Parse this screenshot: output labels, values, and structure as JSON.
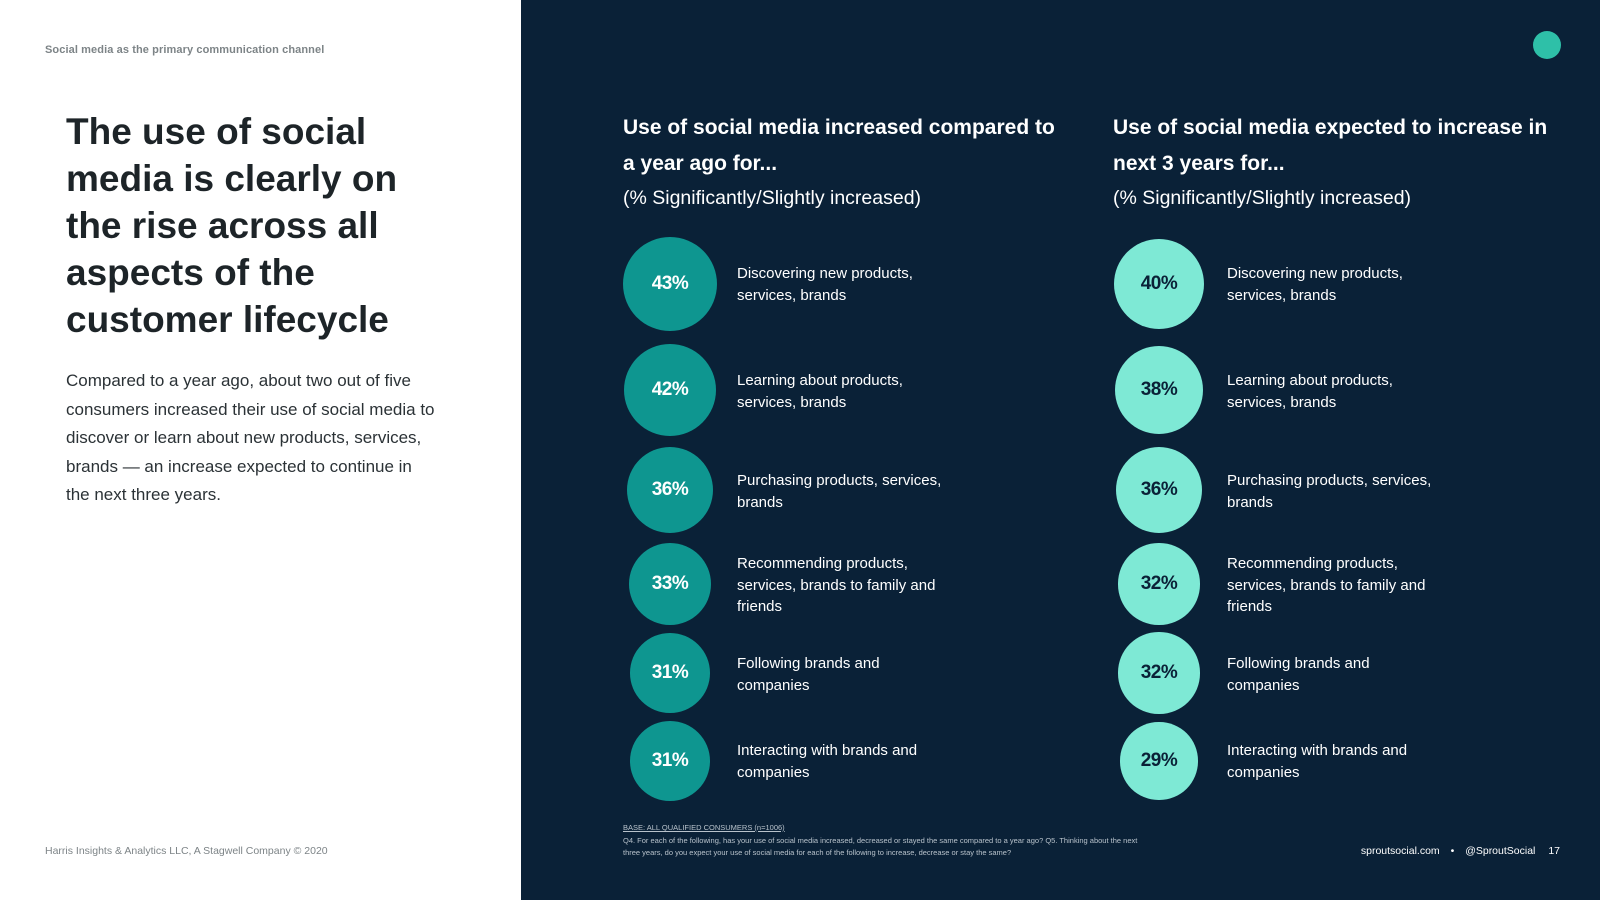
{
  "section_label": "Social media as the primary communication channel",
  "headline": "The use of social media is clearly on the rise across all aspects of the customer lifecycle",
  "body_text": "Compared to a year ago, about two out of five consumers increased their use of social media to discover or learn about new products, services, brands — an increase expected to continue in the next three years.",
  "footer_left": "Harris Insights & Analytics LLC, A Stagwell Company © 2020",
  "footer_right": {
    "site": "sproutsocial.com",
    "separator": "•",
    "handle": "@SproutSocial",
    "page": "17"
  },
  "base_note": "BASE: ALL QUALIFIED CONSUMERS (n=1006)",
  "footnote": "Q4. For each of the following, has your use of social media increased, decreased or stayed the same compared to a year ago? Q5. Thinking about the next three years, do you expect your use of social media for each of the following to increase, decrease or stay the same?",
  "colors": {
    "panel_bg": "#0a2137",
    "bubble_year_ago": "#0e9690",
    "bubble_next_3_years": "#7ee9d5",
    "accent_dot": "#2ec0a8"
  },
  "chart_data": [
    {
      "type": "bubble",
      "title": "Use of social media increased compared to a year ago for...",
      "subtitle": "(% Significantly/Slightly increased)",
      "unit": "%",
      "categories": [
        "Discovering new products, services, brands",
        "Learning about products, services, brands",
        "Purchasing products, services, brands",
        "Recommending products, services, brands to family and friends",
        "Following brands and companies",
        "Interacting with brands and companies"
      ],
      "values": [
        43,
        42,
        36,
        33,
        31,
        31
      ],
      "labels": [
        "43%",
        "42%",
        "36%",
        "33%",
        "31%",
        "31%"
      ]
    },
    {
      "type": "bubble",
      "title": "Use of social media expected to increase in next 3 years for...",
      "subtitle": "(% Significantly/Slightly increased)",
      "unit": "%",
      "categories": [
        "Discovering new products, services, brands",
        "Learning about products, services, brands",
        "Purchasing products, services, brands",
        "Recommending products, services, brands to family and friends",
        "Following brands and companies",
        "Interacting with brands and companies"
      ],
      "values": [
        40,
        38,
        36,
        32,
        32,
        29
      ],
      "labels": [
        "40%",
        "38%",
        "36%",
        "32%",
        "32%",
        "29%"
      ]
    }
  ]
}
